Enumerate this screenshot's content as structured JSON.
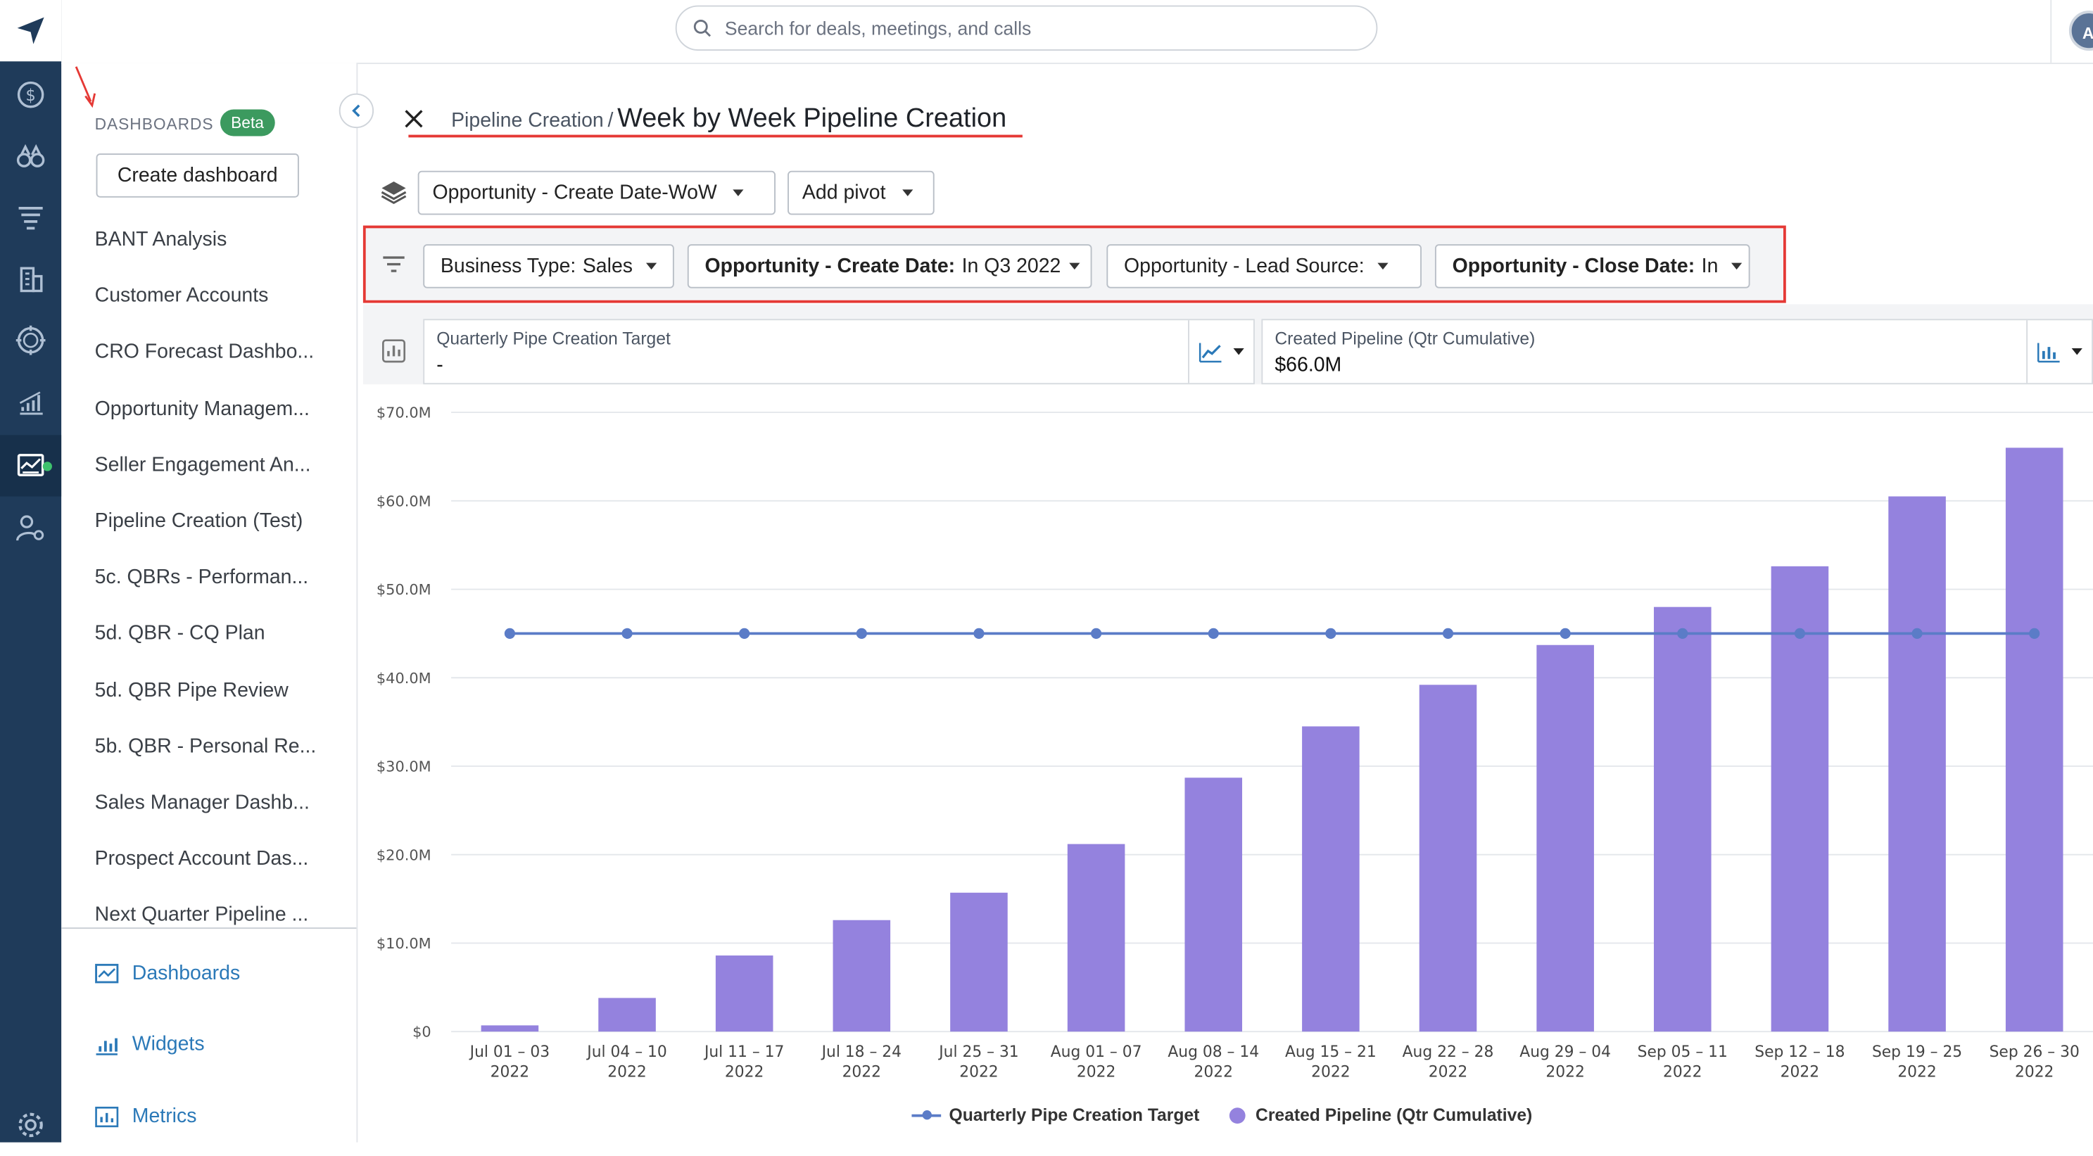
{
  "search": {
    "placeholder": "Search for deals, meetings, and calls"
  },
  "user": {
    "initials": "AI"
  },
  "sidebar": {
    "section_title": "DASHBOARDS",
    "beta_badge": "Beta",
    "create_label": "Create dashboard",
    "items": [
      {
        "label": "BANT Analysis"
      },
      {
        "label": "Customer Accounts"
      },
      {
        "label": "CRO Forecast Dashbo..."
      },
      {
        "label": "Opportunity Managem..."
      },
      {
        "label": "Seller Engagement An..."
      },
      {
        "label": "Pipeline Creation (Test)"
      },
      {
        "label": "5c. QBRs - Performan..."
      },
      {
        "label": "5d. QBR - CQ Plan"
      },
      {
        "label": "5d. QBR Pipe Review"
      },
      {
        "label": "5b. QBR - Personal Re..."
      },
      {
        "label": "Sales Manager Dashb..."
      },
      {
        "label": "Prospect Account Das..."
      },
      {
        "label": "Next Quarter Pipeline ..."
      }
    ],
    "nav": {
      "dashboards": "Dashboards",
      "widgets": "Widgets",
      "metrics": "Metrics"
    }
  },
  "breadcrumb": {
    "parent": "Pipeline Creation",
    "separator": "/",
    "title": "Week by Week Pipeline Creation"
  },
  "toolbar": {
    "grouping": "Opportunity - Create Date-WoW",
    "add_pivot": "Add pivot"
  },
  "filters": [
    {
      "name": "Business Type:",
      "value": "Sales"
    },
    {
      "name": "Opportunity - Create Date:",
      "value": "In Q3 2022"
    },
    {
      "name": "",
      "value": "Opportunity - Lead Source:"
    },
    {
      "name": "Opportunity - Close Date:",
      "value": "In"
    }
  ],
  "metrics": [
    {
      "label": "Quarterly Pipe Creation Target",
      "value": "-"
    },
    {
      "label": "Created Pipeline (Qtr Cumulative)",
      "value": "$66.0M"
    }
  ],
  "colors": {
    "bar": "#9482de",
    "line": "#5b7cc7",
    "accent": "#2b79b8",
    "highlight": "#e53935"
  },
  "chart_data": {
    "type": "bar",
    "categories": [
      [
        "Jul 01 – 03",
        "2022"
      ],
      [
        "Jul 04 – 10",
        "2022"
      ],
      [
        "Jul 11 – 17",
        "2022"
      ],
      [
        "Jul 18 – 24",
        "2022"
      ],
      [
        "Jul 25 – 31",
        "2022"
      ],
      [
        "Aug 01 – 07",
        "2022"
      ],
      [
        "Aug 08 – 14",
        "2022"
      ],
      [
        "Aug 15 – 21",
        "2022"
      ],
      [
        "Aug 22 – 28",
        "2022"
      ],
      [
        "Aug 29 – 04",
        "2022"
      ],
      [
        "Sep 05 – 11",
        "2022"
      ],
      [
        "Sep 12 – 18",
        "2022"
      ],
      [
        "Sep 19 – 25",
        "2022"
      ],
      [
        "Sep 26 – 30",
        "2022"
      ]
    ],
    "series": [
      {
        "name": "Created Pipeline (Qtr Cumulative)",
        "type": "bar",
        "values": [
          0.7,
          3.8,
          8.6,
          12.6,
          15.7,
          21.2,
          28.7,
          34.5,
          39.2,
          43.7,
          48.0,
          52.6,
          60.5,
          66.0
        ]
      },
      {
        "name": "Quarterly Pipe Creation Target",
        "type": "line",
        "values": [
          45,
          45,
          45,
          45,
          45,
          45,
          45,
          45,
          45,
          45,
          45,
          45,
          45,
          45
        ]
      }
    ],
    "yticks": [
      "$0",
      "$10.0M",
      "$20.0M",
      "$30.0M",
      "$40.0M",
      "$50.0M",
      "$60.0M",
      "$70.0M"
    ],
    "ylim": [
      0,
      70
    ],
    "grid": true,
    "legend": "bottom-center"
  }
}
